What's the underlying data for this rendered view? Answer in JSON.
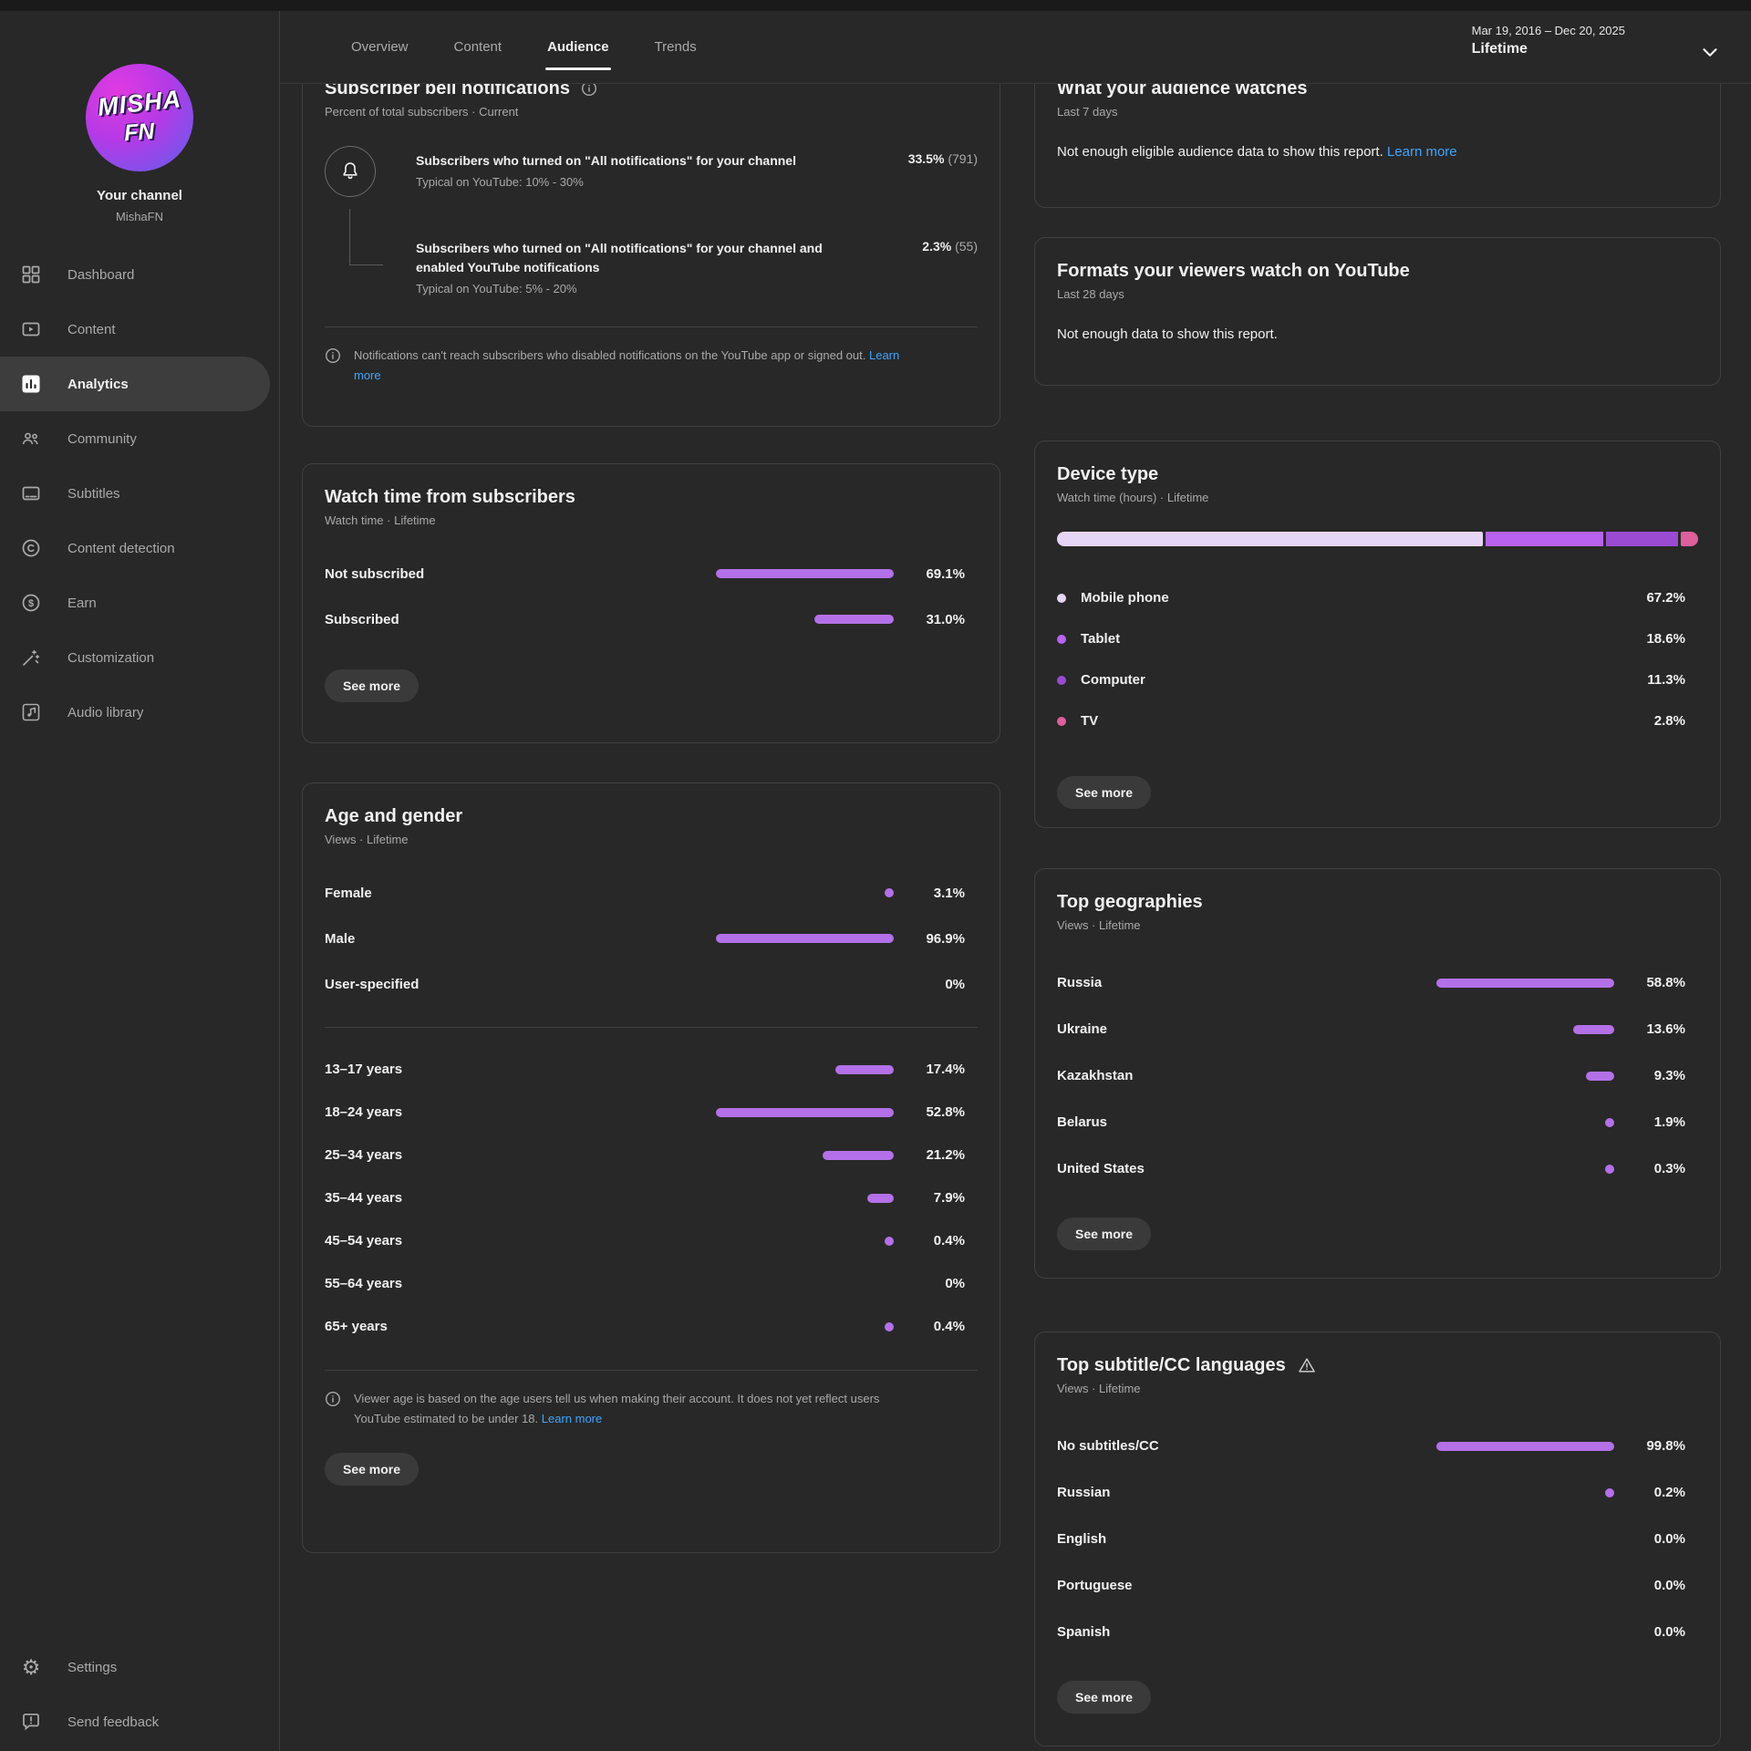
{
  "header": {
    "tabs": [
      {
        "label": "Overview"
      },
      {
        "label": "Content"
      },
      {
        "label": "Audience"
      },
      {
        "label": "Trends"
      }
    ],
    "active_tab": "Audience",
    "date_range": "Mar 19, 2016 – Dec 20, 2025",
    "date_preset": "Lifetime"
  },
  "sidebar": {
    "avatar_line1": "MISHA",
    "avatar_line2": "FN",
    "channel_label": "Your channel",
    "channel_name": "MishaFN",
    "items": [
      {
        "label": "Dashboard"
      },
      {
        "label": "Content"
      },
      {
        "label": "Analytics"
      },
      {
        "label": "Community"
      },
      {
        "label": "Subtitles"
      },
      {
        "label": "Content detection"
      },
      {
        "label": "Earn"
      },
      {
        "label": "Customization"
      },
      {
        "label": "Audio library"
      }
    ],
    "footer_items": [
      {
        "label": "Settings"
      },
      {
        "label": "Send feedback"
      }
    ]
  },
  "cards": {
    "bell": {
      "title": "Subscriber bell notifications",
      "subtitle": "Percent of total subscribers · Current",
      "row1": {
        "label": "Subscribers who turned on \"All notifications\" for your channel",
        "typical": "Typical on YouTube: 10% - 30%",
        "value": "33.5%",
        "count": "(791)"
      },
      "row2": {
        "label": "Subscribers who turned on \"All notifications\" for your channel and enabled YouTube notifications",
        "typical": "Typical on YouTube: 5% - 20%",
        "value": "2.3%",
        "count": "(55)"
      },
      "note": "Notifications can't reach subscribers who disabled notifications on the YouTube app or signed out.",
      "note_link": "Learn more"
    },
    "watch_time": {
      "title": "Watch time from subscribers",
      "subtitle": "Watch time · Lifetime",
      "rows": [
        {
          "label": "Not subscribed",
          "value": 69.1,
          "display": "69.1%"
        },
        {
          "label": "Subscribed",
          "value": 31.0,
          "display": "31.0%"
        }
      ],
      "button": "See more"
    },
    "age_gender": {
      "title": "Age and gender",
      "subtitle": "Views · Lifetime",
      "gender_rows": [
        {
          "label": "Female",
          "value": 3.1,
          "display": "3.1%"
        },
        {
          "label": "Male",
          "value": 96.9,
          "display": "96.9%"
        },
        {
          "label": "User-specified",
          "value": 0,
          "display": "0%"
        }
      ],
      "age_rows": [
        {
          "label": "13–17 years",
          "value": 17.4,
          "display": "17.4%"
        },
        {
          "label": "18–24 years",
          "value": 52.8,
          "display": "52.8%"
        },
        {
          "label": "25–34 years",
          "value": 21.2,
          "display": "21.2%"
        },
        {
          "label": "35–44 years",
          "value": 7.9,
          "display": "7.9%"
        },
        {
          "label": "45–54 years",
          "value": 0.4,
          "display": "0.4%"
        },
        {
          "label": "55–64 years",
          "value": 0,
          "display": "0%"
        },
        {
          "label": "65+ years",
          "value": 0.4,
          "display": "0.4%"
        }
      ],
      "note": "Viewer age is based on the age users tell us when making their account. It does not yet reflect users YouTube estimated to be under 18.",
      "note_link": "Learn more",
      "button": "See more"
    },
    "audience_watches": {
      "title": "What your audience watches",
      "subtitle": "Last 7 days",
      "message": "Not enough eligible audience data to show this report.",
      "link": "Learn more"
    },
    "formats": {
      "title": "Formats your viewers watch on YouTube",
      "subtitle": "Last 28 days",
      "message": "Not enough data to show this report."
    },
    "device_type": {
      "title": "Device type",
      "subtitle": "Watch time (hours) · Lifetime",
      "rows": [
        {
          "label": "Mobile phone",
          "value": 67.2,
          "display": "67.2%",
          "color": "#e6d6f5"
        },
        {
          "label": "Tablet",
          "value": 18.6,
          "display": "18.6%",
          "color": "#b763ef"
        },
        {
          "label": "Computer",
          "value": 11.3,
          "display": "11.3%",
          "color": "#9a4bd2"
        },
        {
          "label": "TV",
          "value": 2.8,
          "display": "2.8%",
          "color": "#dd5f9e"
        }
      ],
      "button": "See more"
    },
    "geographies": {
      "title": "Top geographies",
      "subtitle": "Views · Lifetime",
      "rows": [
        {
          "label": "Russia",
          "value": 58.8,
          "display": "58.8%"
        },
        {
          "label": "Ukraine",
          "value": 13.6,
          "display": "13.6%"
        },
        {
          "label": "Kazakhstan",
          "value": 9.3,
          "display": "9.3%"
        },
        {
          "label": "Belarus",
          "value": 1.9,
          "display": "1.9%"
        },
        {
          "label": "United States",
          "value": 0.3,
          "display": "0.3%"
        }
      ],
      "button": "See more"
    },
    "subtitles_cc": {
      "title": "Top subtitle/CC languages",
      "subtitle": "Views · Lifetime",
      "rows": [
        {
          "label": "No subtitles/CC",
          "value": 99.8,
          "display": "99.8%"
        },
        {
          "label": "Russian",
          "value": 0.2,
          "display": "0.2%"
        },
        {
          "label": "English",
          "value": 0,
          "display": "0.0%"
        },
        {
          "label": "Portuguese",
          "value": 0,
          "display": "0.0%"
        },
        {
          "label": "Spanish",
          "value": 0,
          "display": "0.0%"
        }
      ],
      "button": "See more"
    }
  },
  "colors": {
    "accent_purple": "#b470e8",
    "link_blue": "#3ea6ff",
    "device_mobile": "#e6d6f5",
    "device_tablet": "#b763ef",
    "device_computer": "#9a4bd2",
    "device_tv": "#dd5f9e"
  },
  "chart_data": [
    {
      "type": "bar",
      "title": "Subscriber bell notifications (Percent of total subscribers · Current)",
      "categories": [
        "Turned on All notifications",
        "Turned on All notifications + enabled YouTube notifications"
      ],
      "values": [
        33.5,
        2.3
      ]
    },
    {
      "type": "bar",
      "title": "Watch time from subscribers (Watch time · Lifetime)",
      "categories": [
        "Not subscribed",
        "Subscribed"
      ],
      "values": [
        69.1,
        31.0
      ],
      "unit": "%"
    },
    {
      "type": "bar",
      "title": "Age and gender (Views · Lifetime)",
      "series": [
        {
          "name": "Gender",
          "categories": [
            "Female",
            "Male",
            "User-specified"
          ],
          "values": [
            3.1,
            96.9,
            0
          ]
        },
        {
          "name": "Age",
          "categories": [
            "13–17 years",
            "18–24 years",
            "25–34 years",
            "35–44 years",
            "45–54 years",
            "55–64 years",
            "65+ years"
          ],
          "values": [
            17.4,
            52.8,
            21.2,
            7.9,
            0.4,
            0,
            0.4
          ]
        }
      ],
      "unit": "%"
    },
    {
      "type": "bar",
      "title": "Device type (Watch time (hours) · Lifetime)",
      "categories": [
        "Mobile phone",
        "Tablet",
        "Computer",
        "TV"
      ],
      "values": [
        67.2,
        18.6,
        11.3,
        2.8
      ],
      "unit": "%"
    },
    {
      "type": "bar",
      "title": "Top geographies (Views · Lifetime)",
      "categories": [
        "Russia",
        "Ukraine",
        "Kazakhstan",
        "Belarus",
        "United States"
      ],
      "values": [
        58.8,
        13.6,
        9.3,
        1.9,
        0.3
      ],
      "unit": "%"
    },
    {
      "type": "bar",
      "title": "Top subtitle/CC languages (Views · Lifetime)",
      "categories": [
        "No subtitles/CC",
        "Russian",
        "English",
        "Portuguese",
        "Spanish"
      ],
      "values": [
        99.8,
        0.2,
        0.0,
        0.0,
        0.0
      ],
      "unit": "%"
    }
  ]
}
